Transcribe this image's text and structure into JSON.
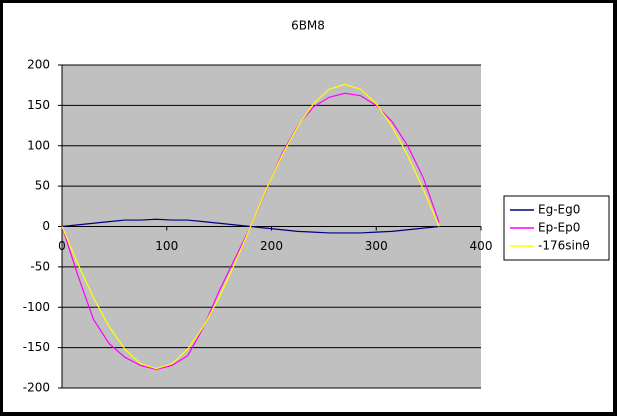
{
  "chart_data": {
    "type": "line",
    "title": "6BM8",
    "x": [
      0,
      15,
      30,
      45,
      60,
      75,
      90,
      105,
      120,
      135,
      150,
      165,
      180,
      195,
      210,
      225,
      240,
      255,
      270,
      285,
      300,
      315,
      330,
      345,
      360
    ],
    "series": [
      {
        "name": "Eg-Eg0",
        "color": "#000080",
        "values": [
          0,
          2,
          4,
          6,
          8,
          8,
          9,
          8,
          8,
          6,
          4,
          2,
          0,
          -2,
          -4,
          -6,
          -7,
          -8,
          -8,
          -8,
          -7,
          -6,
          -4,
          -2,
          0
        ]
      },
      {
        "name": "Ep-Ep0",
        "color": "#ff00ff",
        "values": [
          0,
          -60,
          -115,
          -145,
          -162,
          -172,
          -177,
          -172,
          -160,
          -125,
          -80,
          -40,
          0,
          45,
          90,
          125,
          148,
          160,
          165,
          162,
          150,
          130,
          100,
          60,
          5
        ]
      },
      {
        "name": "-176sinθ",
        "color": "#ffff00",
        "values": [
          0,
          -46,
          -88,
          -124,
          -152,
          -170,
          -176,
          -170,
          -152,
          -124,
          -88,
          -46,
          0,
          46,
          88,
          124,
          152,
          170,
          176,
          170,
          152,
          124,
          88,
          46,
          0
        ]
      }
    ],
    "xlim": [
      0,
      400
    ],
    "xticks": [
      0,
      100,
      200,
      300,
      400
    ],
    "ylim": [
      -200,
      200
    ],
    "yticks": [
      -200,
      -150,
      -100,
      -50,
      0,
      50,
      100,
      150,
      200
    ],
    "grid": true,
    "legend": "right"
  }
}
